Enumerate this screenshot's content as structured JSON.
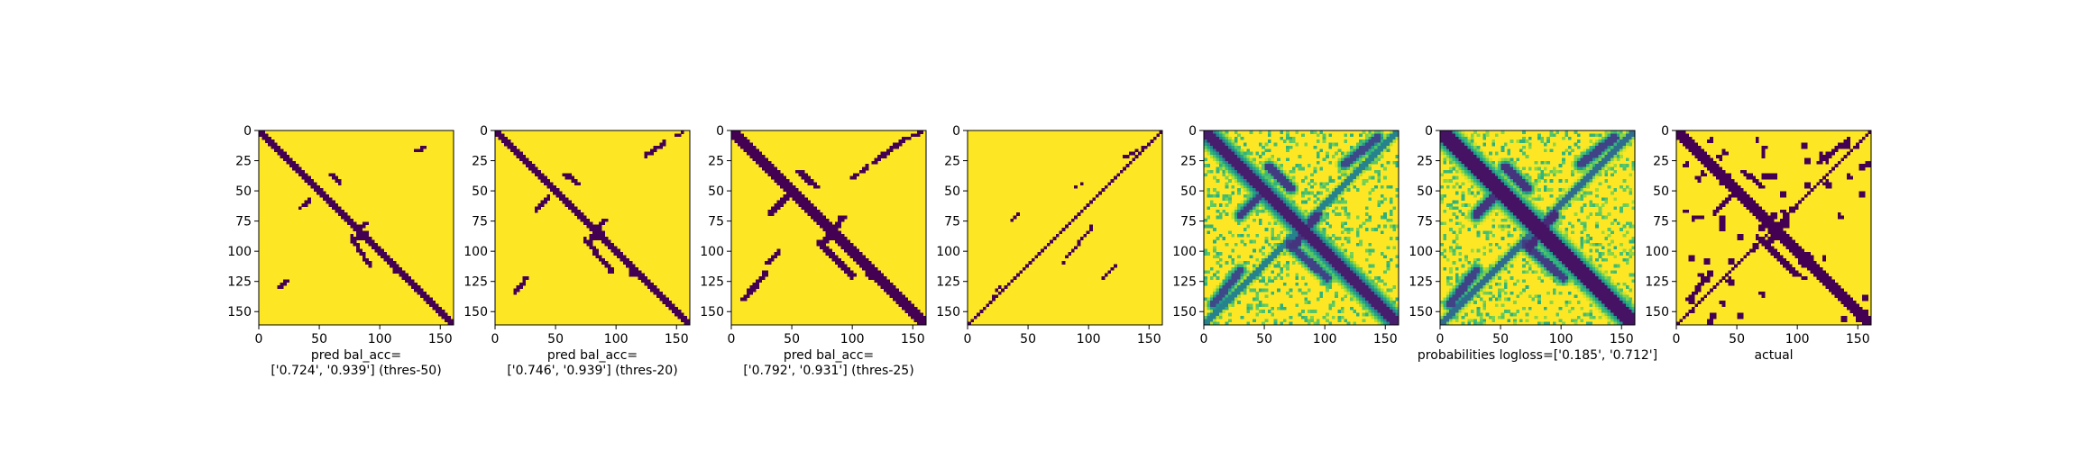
{
  "figure": {
    "panel_count": 7
  },
  "chart_data": [
    {
      "type": "heatmap",
      "name": "pred-threshold-50",
      "colormap": "viridis",
      "binary": true,
      "xlim": [
        0,
        161
      ],
      "ylim": [
        161,
        0
      ],
      "x_ticks": [
        0,
        50,
        100,
        150
      ],
      "y_ticks": [
        0,
        25,
        50,
        75,
        100,
        125,
        150
      ],
      "xlabel_lines": [
        "pred bal_acc=",
        "['0.724', '0.939'] (thres-50)"
      ],
      "features": [
        {
          "kind": "diag",
          "from": 0,
          "to": 161,
          "width": 3.0
        },
        {
          "kind": "line",
          "from": [
            42,
            58
          ],
          "to": [
            34,
            64
          ],
          "width": 1.6
        },
        {
          "kind": "line",
          "from": [
            60,
            37
          ],
          "to": [
            66,
            43
          ],
          "width": 1.6
        },
        {
          "kind": "line",
          "from": [
            88,
            76
          ],
          "to": [
            80,
            90
          ],
          "width": 1.8
        },
        {
          "kind": "line",
          "from": [
            76,
            88
          ],
          "to": [
            92,
            112
          ],
          "width": 1.8
        },
        {
          "kind": "line",
          "from": [
            130,
            17
          ],
          "to": [
            138,
            14
          ],
          "width": 1.4
        },
        {
          "kind": "line",
          "from": [
            17,
            130
          ],
          "to": [
            23,
            124
          ],
          "width": 1.4
        },
        {
          "kind": "blob",
          "at": [
            86,
            86
          ],
          "r": 4
        },
        {
          "kind": "blob",
          "at": [
            114,
            116
          ],
          "r": 3
        }
      ]
    },
    {
      "type": "heatmap",
      "name": "pred-threshold-20",
      "colormap": "viridis",
      "binary": true,
      "xlim": [
        0,
        161
      ],
      "ylim": [
        161,
        0
      ],
      "x_ticks": [
        0,
        50,
        100,
        150
      ],
      "y_ticks": [
        0,
        25,
        50,
        75,
        100,
        125,
        150
      ],
      "xlabel_lines": [
        "pred bal_acc=",
        "['0.746', '0.939'] (thres-20)"
      ],
      "features": [
        {
          "kind": "diag",
          "from": 0,
          "to": 161,
          "width": 3.2
        },
        {
          "kind": "line",
          "from": [
            44,
            56
          ],
          "to": [
            34,
            66
          ],
          "width": 2.0
        },
        {
          "kind": "line",
          "from": [
            58,
            36
          ],
          "to": [
            68,
            44
          ],
          "width": 2.0
        },
        {
          "kind": "line",
          "from": [
            90,
            74
          ],
          "to": [
            78,
            92
          ],
          "width": 2.2
        },
        {
          "kind": "line",
          "from": [
            74,
            90
          ],
          "to": [
            96,
            116
          ],
          "width": 2.0
        },
        {
          "kind": "line",
          "from": [
            125,
            20
          ],
          "to": [
            140,
            10
          ],
          "width": 1.8
        },
        {
          "kind": "line",
          "from": [
            16,
            135
          ],
          "to": [
            26,
            122
          ],
          "width": 1.8
        },
        {
          "kind": "line",
          "from": [
            150,
            5
          ],
          "to": [
            156,
            1
          ],
          "width": 1.2
        },
        {
          "kind": "blob",
          "at": [
            86,
            86
          ],
          "r": 5
        },
        {
          "kind": "blob",
          "at": [
            115,
            117
          ],
          "r": 4
        }
      ]
    },
    {
      "type": "heatmap",
      "name": "pred-threshold-25",
      "colormap": "viridis",
      "binary": true,
      "xlim": [
        0,
        161
      ],
      "ylim": [
        161,
        0
      ],
      "x_ticks": [
        0,
        50,
        100,
        150
      ],
      "y_ticks": [
        0,
        25,
        50,
        75,
        100,
        125,
        150
      ],
      "xlabel_lines": [
        "pred bal_acc=",
        "['0.792', '0.931'] (thres-25)"
      ],
      "features": [
        {
          "kind": "diag",
          "from": 0,
          "to": 161,
          "width": 3.6
        },
        {
          "kind": "line",
          "from": [
            46,
            54
          ],
          "to": [
            32,
            68
          ],
          "width": 2.4
        },
        {
          "kind": "line",
          "from": [
            56,
            34
          ],
          "to": [
            70,
            46
          ],
          "width": 2.4
        },
        {
          "kind": "line",
          "from": [
            92,
            72
          ],
          "to": [
            76,
            94
          ],
          "width": 2.6
        },
        {
          "kind": "line",
          "from": [
            72,
            92
          ],
          "to": [
            100,
            120
          ],
          "width": 2.4
        },
        {
          "kind": "line",
          "from": [
            118,
            26
          ],
          "to": [
            142,
            8
          ],
          "width": 2.2
        },
        {
          "kind": "line",
          "from": [
            10,
            140
          ],
          "to": [
            28,
            118
          ],
          "width": 2.2
        },
        {
          "kind": "line",
          "from": [
            100,
            40
          ],
          "to": [
            112,
            30
          ],
          "width": 1.6
        },
        {
          "kind": "line",
          "from": [
            40,
            100
          ],
          "to": [
            30,
            110
          ],
          "width": 1.6
        },
        {
          "kind": "line",
          "from": [
            146,
            6
          ],
          "to": [
            158,
            1
          ],
          "width": 1.4
        },
        {
          "kind": "blob",
          "at": [
            86,
            86
          ],
          "r": 5
        },
        {
          "kind": "blob",
          "at": [
            116,
            118
          ],
          "r": 5
        },
        {
          "kind": "blob",
          "at": [
            140,
            140
          ],
          "r": 3
        }
      ]
    },
    {
      "type": "heatmap",
      "name": "pred-sparse",
      "colormap": "viridis",
      "binary": true,
      "xlim": [
        0,
        161
      ],
      "ylim": [
        161,
        0
      ],
      "x_ticks": [
        0,
        50,
        100,
        150
      ],
      "y_ticks": [
        0,
        25,
        50,
        75,
        100,
        125,
        150
      ],
      "xlabel_lines": [],
      "features": [
        {
          "kind": "line",
          "from": [
            0,
            161
          ],
          "to": [
            161,
            0
          ],
          "width": 0.9
        },
        {
          "kind": "line",
          "from": [
            36,
            75
          ],
          "to": [
            44,
            68
          ],
          "width": 0.8
        },
        {
          "kind": "line",
          "from": [
            88,
            48
          ],
          "to": [
            96,
            42
          ],
          "width": 0.8
        },
        {
          "kind": "line",
          "from": [
            78,
            110
          ],
          "to": [
            104,
            78
          ],
          "width": 0.9
        },
        {
          "kind": "line",
          "from": [
            20,
            138
          ],
          "to": [
            28,
            128
          ],
          "width": 0.8
        },
        {
          "kind": "line",
          "from": [
            112,
            122
          ],
          "to": [
            122,
            112
          ],
          "width": 0.8
        },
        {
          "kind": "line",
          "from": [
            130,
            22
          ],
          "to": [
            148,
            12
          ],
          "width": 0.8
        }
      ]
    },
    {
      "type": "heatmap",
      "name": "probabilities",
      "colormap": "viridis",
      "binary": false,
      "xlim": [
        0,
        161
      ],
      "ylim": [
        161,
        0
      ],
      "x_ticks": [
        0,
        50,
        100,
        150
      ],
      "y_ticks": [
        0,
        25,
        50,
        75,
        100,
        125,
        150
      ],
      "xlabel_lines": [],
      "features": [
        {
          "kind": "noise",
          "density": 0.55
        },
        {
          "kind": "diag",
          "from": 0,
          "to": 161,
          "width": 5.0,
          "value": 0.08,
          "halo": 0.4
        },
        {
          "kind": "line",
          "from": [
            0,
            161
          ],
          "to": [
            161,
            0
          ],
          "width": 2.0,
          "value": 0.45,
          "halo": 0.75
        },
        {
          "kind": "line",
          "from": [
            46,
            54
          ],
          "to": [
            30,
            70
          ],
          "width": 3.0,
          "value": 0.18,
          "halo": 0.5
        },
        {
          "kind": "line",
          "from": [
            54,
            30
          ],
          "to": [
            72,
            48
          ],
          "width": 3.0,
          "value": 0.18,
          "halo": 0.5
        },
        {
          "kind": "line",
          "from": [
            94,
            70
          ],
          "to": [
            74,
            96
          ],
          "width": 3.2,
          "value": 0.15,
          "halo": 0.5
        },
        {
          "kind": "line",
          "from": [
            70,
            94
          ],
          "to": [
            102,
            122
          ],
          "width": 3.0,
          "value": 0.2,
          "halo": 0.5
        },
        {
          "kind": "line",
          "from": [
            116,
            28
          ],
          "to": [
            144,
            6
          ],
          "width": 3.0,
          "value": 0.22,
          "halo": 0.5
        },
        {
          "kind": "line",
          "from": [
            8,
            144
          ],
          "to": [
            30,
            116
          ],
          "width": 3.0,
          "value": 0.22,
          "halo": 0.5
        }
      ]
    },
    {
      "type": "heatmap",
      "name": "probabilities-logloss",
      "colormap": "viridis",
      "binary": false,
      "xlim": [
        0,
        161
      ],
      "ylim": [
        161,
        0
      ],
      "x_ticks": [
        0,
        50,
        100,
        150
      ],
      "y_ticks": [
        0,
        25,
        50,
        75,
        100,
        125,
        150
      ],
      "xlabel_lines": [
        "probabilities logloss=['0.185', '0.712']"
      ],
      "features": [
        {
          "kind": "noise",
          "density": 0.7
        },
        {
          "kind": "diag",
          "from": 0,
          "to": 161,
          "width": 5.5,
          "value": 0.05,
          "halo": 0.4
        },
        {
          "kind": "line",
          "from": [
            0,
            161
          ],
          "to": [
            161,
            0
          ],
          "width": 2.4,
          "value": 0.35,
          "halo": 0.7
        },
        {
          "kind": "line",
          "from": [
            46,
            54
          ],
          "to": [
            30,
            70
          ],
          "width": 3.4,
          "value": 0.15,
          "halo": 0.5
        },
        {
          "kind": "line",
          "from": [
            54,
            30
          ],
          "to": [
            72,
            48
          ],
          "width": 3.4,
          "value": 0.15,
          "halo": 0.5
        },
        {
          "kind": "line",
          "from": [
            94,
            70
          ],
          "to": [
            74,
            96
          ],
          "width": 3.4,
          "value": 0.12,
          "halo": 0.5
        },
        {
          "kind": "line",
          "from": [
            70,
            94
          ],
          "to": [
            102,
            122
          ],
          "width": 3.2,
          "value": 0.18,
          "halo": 0.5
        },
        {
          "kind": "line",
          "from": [
            116,
            28
          ],
          "to": [
            144,
            6
          ],
          "width": 3.2,
          "value": 0.2,
          "halo": 0.5
        },
        {
          "kind": "line",
          "from": [
            8,
            144
          ],
          "to": [
            30,
            116
          ],
          "width": 3.2,
          "value": 0.2,
          "halo": 0.5
        }
      ]
    },
    {
      "type": "heatmap",
      "name": "actual",
      "colormap": "viridis",
      "binary": true,
      "xlim": [
        0,
        161
      ],
      "ylim": [
        161,
        0
      ],
      "x_ticks": [
        0,
        50,
        100,
        150
      ],
      "y_ticks": [
        0,
        25,
        50,
        75,
        100,
        125,
        150
      ],
      "xlabel_lines": [
        "actual"
      ],
      "features": [
        {
          "kind": "diag",
          "from": 0,
          "to": 161,
          "width": 3.6
        },
        {
          "kind": "line",
          "from": [
            0,
            161
          ],
          "to": [
            161,
            0
          ],
          "width": 1.6
        },
        {
          "kind": "line",
          "from": [
            46,
            54
          ],
          "to": [
            32,
            68
          ],
          "width": 2.0
        },
        {
          "kind": "line",
          "from": [
            56,
            34
          ],
          "to": [
            70,
            46
          ],
          "width": 2.0
        },
        {
          "kind": "line",
          "from": [
            92,
            72
          ],
          "to": [
            76,
            94
          ],
          "width": 2.2
        },
        {
          "kind": "line",
          "from": [
            72,
            92
          ],
          "to": [
            100,
            120
          ],
          "width": 2.0
        },
        {
          "kind": "line",
          "from": [
            118,
            26
          ],
          "to": [
            142,
            8
          ],
          "width": 2.0
        },
        {
          "kind": "line",
          "from": [
            10,
            140
          ],
          "to": [
            28,
            118
          ],
          "width": 2.0
        },
        {
          "kind": "scatter",
          "count": 38,
          "seed": 7,
          "r": 2.4
        },
        {
          "kind": "blob",
          "at": [
            86,
            86
          ],
          "r": 4
        },
        {
          "kind": "blob",
          "at": [
            114,
            114
          ],
          "r": 4
        },
        {
          "kind": "blob",
          "at": [
            28,
            28
          ],
          "r": 3
        }
      ]
    }
  ]
}
